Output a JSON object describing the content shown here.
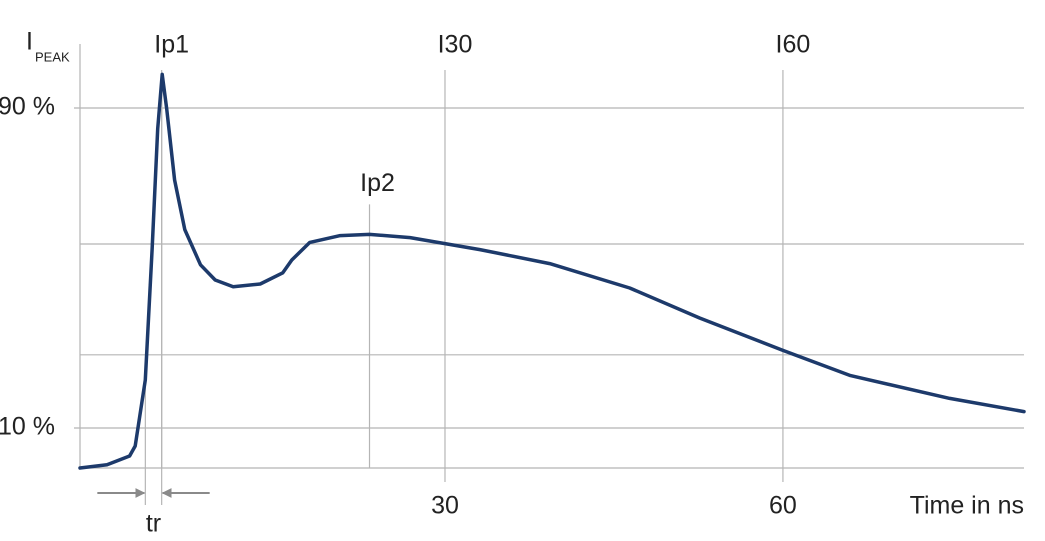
{
  "chart_data": {
    "type": "line",
    "ylabel": "I",
    "ylabel_sub": "PEAK",
    "xlabel": "Time in ns",
    "color": "#1d3a6b",
    "x": [
      -2.4,
      0,
      2.0,
      2.5,
      3.4,
      4.0,
      4.5,
      4.9,
      5.3,
      6.0,
      6.9,
      8.3,
      9.6,
      11.2,
      13.6,
      15.6,
      16.4,
      18.0,
      20.7,
      23.3,
      26.9,
      30.0,
      33.1,
      39.3,
      46.4,
      52.6,
      60.0,
      66.0,
      74.8,
      81.4
    ],
    "values": [
      0,
      0.8,
      3,
      5.5,
      22,
      54.6,
      84.8,
      98.4,
      89.8,
      72,
      59.6,
      50.8,
      47,
      45.3,
      46,
      48.8,
      52,
      56.4,
      58.1,
      58.4,
      57.6,
      56.1,
      54.6,
      51.1,
      45,
      37.5,
      29.4,
      23.1,
      17.4,
      14.1
    ],
    "xlim": [
      -2.4,
      81.4
    ],
    "ylim": [
      0,
      106
    ],
    "xticks": [
      30,
      60
    ],
    "yticks": [
      {
        "value": 90,
        "label": "90 %"
      },
      {
        "value": 10,
        "label": "10 %"
      }
    ],
    "ygrid_extra": [
      56,
      28.3
    ],
    "grid": true,
    "annotations": [
      {
        "text": "Ip1",
        "x": 4.85
      },
      {
        "text": "I30",
        "x": 30
      },
      {
        "text": "I60",
        "x": 60
      },
      {
        "text": "Ip2",
        "x": 23.3,
        "y": 58.4
      }
    ],
    "rise_time": {
      "text": "tr",
      "x": [
        3.4,
        4.85
      ]
    }
  }
}
